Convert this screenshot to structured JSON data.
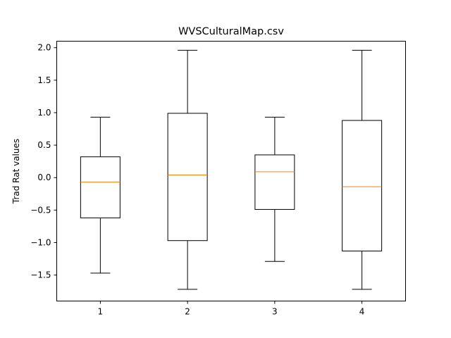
{
  "chart_data": {
    "type": "boxplot",
    "title": "WVSCulturalMap.csv",
    "xlabel": "",
    "ylabel": "Trad Rat values",
    "categories": [
      "1",
      "2",
      "3",
      "4"
    ],
    "ylim": [
      -1.9,
      2.1
    ],
    "yticks": [
      2.0,
      1.5,
      1.0,
      0.5,
      0.0,
      -0.5,
      -1.0,
      -1.5
    ],
    "ytick_labels": [
      "2.0",
      "1.5",
      "1.0",
      "0.5",
      "0.0",
      "−0.5",
      "−1.0",
      "−1.5"
    ],
    "boxes": [
      {
        "whisker_low": -1.47,
        "q1": -0.62,
        "median": -0.07,
        "q3": 0.32,
        "whisker_high": 0.93
      },
      {
        "whisker_low": -1.72,
        "q1": -0.97,
        "median": 0.04,
        "q3": 0.99,
        "whisker_high": 1.96
      },
      {
        "whisker_low": -1.29,
        "q1": -0.49,
        "median": 0.09,
        "q3": 0.35,
        "whisker_high": 0.93
      },
      {
        "whisker_low": -1.72,
        "q1": -1.13,
        "median": -0.14,
        "q3": 0.88,
        "whisker_high": 1.96
      }
    ],
    "colors": {
      "box": "#000000",
      "median": "#ff7f0e"
    },
    "grid": false
  }
}
